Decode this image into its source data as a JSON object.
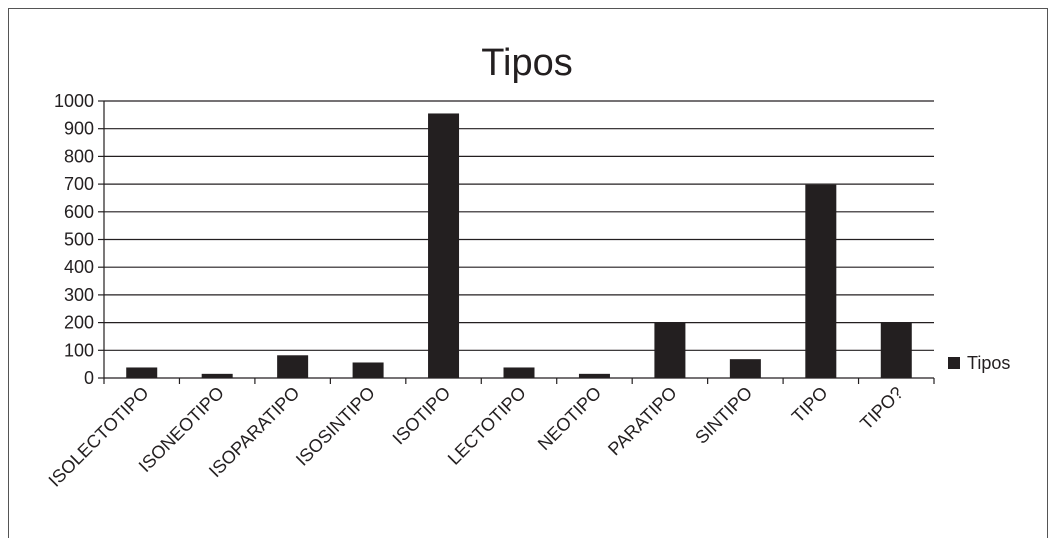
{
  "chart_data": {
    "type": "bar",
    "title": "Tipos",
    "categories": [
      "ISOLECTOTIPO",
      "ISONEOTIPO",
      "ISOPARATIPO",
      "ISOSINTIPO",
      "ISOTIPO",
      "LECTOTIPO",
      "NEOTIPO",
      "PARATIPO",
      "SINTIPO",
      "TIPO",
      "TIPO?"
    ],
    "series": [
      {
        "name": "Tipos",
        "values": [
          38,
          15,
          82,
          56,
          955,
          38,
          15,
          200,
          68,
          698,
          200
        ]
      }
    ],
    "xlabel": "",
    "ylabel": "",
    "ylim": [
      0,
      1000
    ],
    "yticks": [
      0,
      100,
      200,
      300,
      400,
      500,
      600,
      700,
      800,
      900,
      1000
    ],
    "grid": true,
    "legend_position": "right",
    "bar_color": "#231f20"
  }
}
